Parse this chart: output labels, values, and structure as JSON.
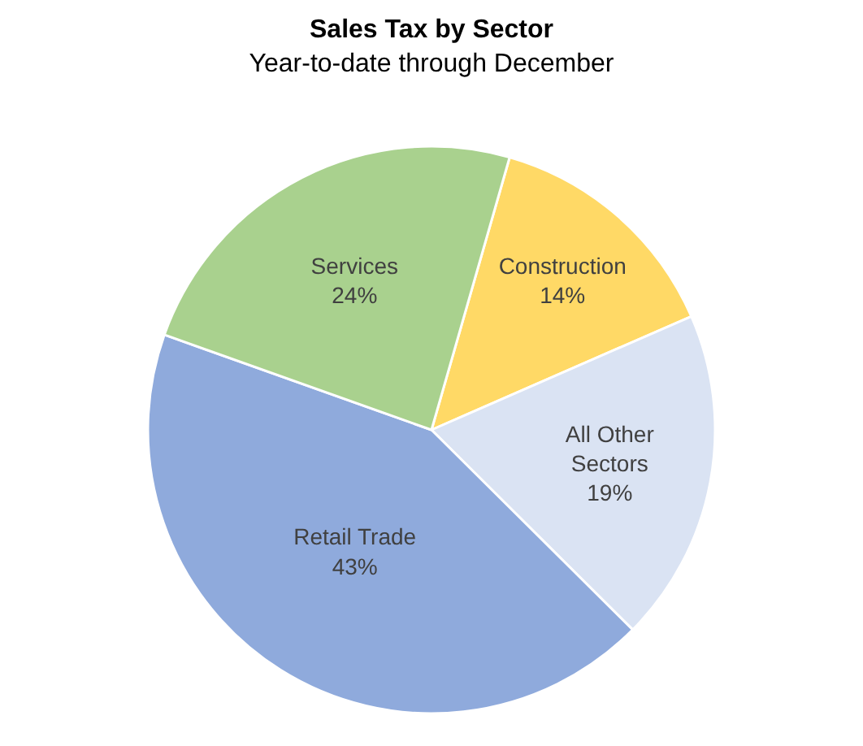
{
  "chart_data": {
    "type": "pie",
    "title": "Sales Tax by Sector",
    "subtitle": "Year-to-date through December",
    "categories": [
      "Construction",
      "All Other Sectors",
      "Retail Trade",
      "Services"
    ],
    "values": [
      14,
      19,
      43,
      24
    ],
    "value_labels": [
      "14%",
      "19%",
      "43%",
      "24%"
    ],
    "colors": [
      "#ffd966",
      "#dae3f3",
      "#8faadc",
      "#a9d18e"
    ],
    "legend": false
  }
}
